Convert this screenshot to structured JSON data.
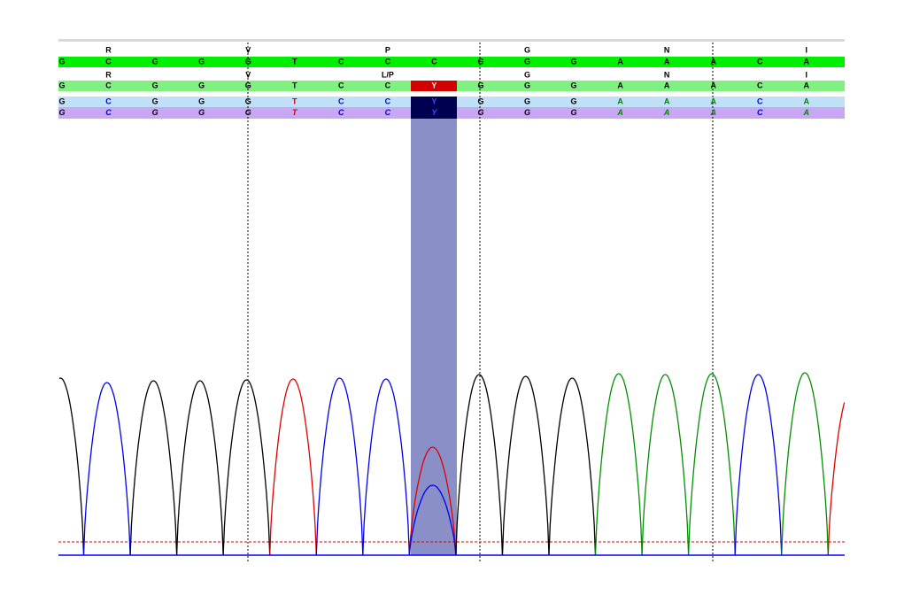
{
  "translation_top": [
    null,
    "R",
    null,
    null,
    "V",
    null,
    null,
    "P",
    null,
    null,
    "G",
    null,
    null,
    "N",
    null,
    null,
    "I"
  ],
  "reference": [
    "G",
    "C",
    "G",
    "G",
    "G",
    "T",
    "C",
    "C",
    "C",
    "G",
    "G",
    "G",
    "A",
    "A",
    "A",
    "C",
    "A"
  ],
  "translation_sample": [
    null,
    "R",
    null,
    null,
    "V",
    null,
    null,
    "L/P",
    null,
    null,
    "G",
    null,
    null,
    "N",
    null,
    null,
    "I"
  ],
  "consensus": [
    "G",
    "C",
    "G",
    "G",
    "G",
    "T",
    "C",
    "C",
    "Y",
    "G",
    "G",
    "G",
    "A",
    "A",
    "A",
    "C",
    "A"
  ],
  "read_forward": [
    "G",
    "C",
    "G",
    "G",
    "G",
    "T",
    "C",
    "C",
    "Y",
    "G",
    "G",
    "G",
    "A",
    "A",
    "A",
    "C",
    "A"
  ],
  "read_reverse": [
    "G",
    "C",
    "G",
    "G",
    "G",
    "T",
    "C",
    "C",
    "Y",
    "G",
    "G",
    "G",
    "A",
    "A",
    "A",
    "C",
    "A"
  ],
  "base_colors": {
    "G": "#000000",
    "C": "#0000cc",
    "T": "#cc0000",
    "A": "#008800",
    "Y": "#3050ff"
  }
}
